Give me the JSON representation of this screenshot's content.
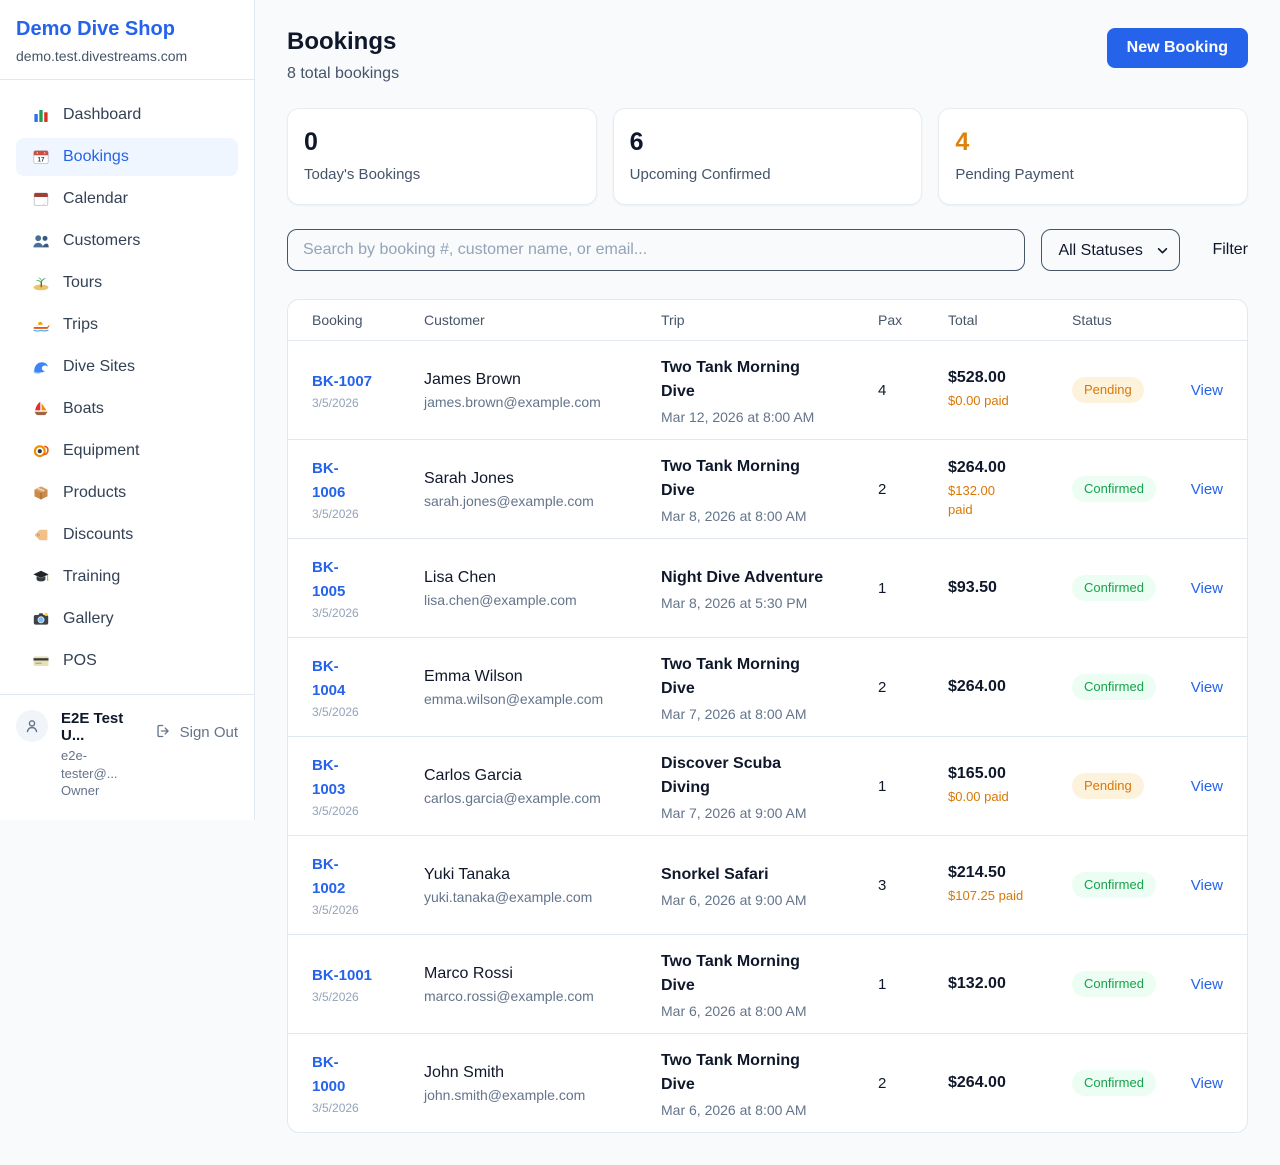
{
  "colors": {
    "primary_blue": "#2563eb",
    "pending_orange": "#d97706",
    "pending_badge_bg": "#fdf3dd",
    "confirmed_green": "#16a34a",
    "confirmed_badge_bg": "#ecfdf3",
    "accent_stat_orange": "#dd830d"
  },
  "sidebar": {
    "brand": "Demo Dive Shop",
    "domain": "demo.test.divestreams.com",
    "items": [
      {
        "label": "Dashboard",
        "icon": "dashboard",
        "active": false
      },
      {
        "label": "Bookings",
        "icon": "bookings",
        "active": true
      },
      {
        "label": "Calendar",
        "icon": "calendar",
        "active": false
      },
      {
        "label": "Customers",
        "icon": "customers",
        "active": false
      },
      {
        "label": "Tours",
        "icon": "tours",
        "active": false
      },
      {
        "label": "Trips",
        "icon": "trips",
        "active": false
      },
      {
        "label": "Dive Sites",
        "icon": "dive-sites",
        "active": false
      },
      {
        "label": "Boats",
        "icon": "boats",
        "active": false
      },
      {
        "label": "Equipment",
        "icon": "equipment",
        "active": false
      },
      {
        "label": "Products",
        "icon": "products",
        "active": false
      },
      {
        "label": "Discounts",
        "icon": "discounts",
        "active": false
      },
      {
        "label": "Training",
        "icon": "training",
        "active": false
      },
      {
        "label": "Gallery",
        "icon": "gallery",
        "active": false
      },
      {
        "label": "POS",
        "icon": "pos",
        "active": false
      }
    ],
    "user": {
      "name": "E2E Test U...",
      "email": "e2e-tester@...",
      "role": "Owner",
      "sign_out": "Sign Out"
    }
  },
  "header": {
    "title": "Bookings",
    "subtitle": "8 total bookings",
    "new_booking": "New Booking"
  },
  "stats": [
    {
      "value": "0",
      "label": "Today's Bookings",
      "accent": false
    },
    {
      "value": "6",
      "label": "Upcoming Confirmed",
      "accent": false
    },
    {
      "value": "4",
      "label": "Pending Payment",
      "accent": true
    }
  ],
  "controls": {
    "search_placeholder": "Search by booking #, customer name, or email...",
    "status_filter": "All Statuses",
    "filter": "Filter"
  },
  "table": {
    "columns": [
      "Booking",
      "Customer",
      "Trip",
      "Pax",
      "Total",
      "Status"
    ],
    "view_label": "View",
    "rows": [
      {
        "id": "BK-1007",
        "id_two_line": false,
        "date": "3/5/2026",
        "customer": "James Brown",
        "email": "james.brown@example.com",
        "trip": "Two Tank Morning Dive",
        "trip_two_line": true,
        "when": "Mar 12, 2026 at 8:00 AM",
        "pax": "4",
        "total": "$528.00",
        "paid": "$0.00 paid",
        "paid_two_line": false,
        "status": "Pending"
      },
      {
        "id": "BK-1006",
        "id_two_line": true,
        "date": "3/5/2026",
        "customer": "Sarah Jones",
        "email": "sarah.jones@example.com",
        "trip": "Two Tank Morning Dive",
        "trip_two_line": true,
        "when": "Mar 8, 2026 at 8:00 AM",
        "pax": "2",
        "total": "$264.00",
        "paid": "$132.00 paid",
        "paid_two_line": true,
        "status": "Confirmed"
      },
      {
        "id": "BK-1005",
        "id_two_line": true,
        "date": "3/5/2026",
        "customer": "Lisa Chen",
        "email": "lisa.chen@example.com",
        "trip": "Night Dive Adventure",
        "trip_two_line": false,
        "when": "Mar 8, 2026 at 5:30 PM",
        "pax": "1",
        "total": "$93.50",
        "paid": null,
        "paid_two_line": false,
        "status": "Confirmed"
      },
      {
        "id": "BK-1004",
        "id_two_line": true,
        "date": "3/5/2026",
        "customer": "Emma Wilson",
        "email": "emma.wilson@example.com",
        "trip": "Two Tank Morning Dive",
        "trip_two_line": true,
        "when": "Mar 7, 2026 at 8:00 AM",
        "pax": "2",
        "total": "$264.00",
        "paid": null,
        "paid_two_line": false,
        "status": "Confirmed"
      },
      {
        "id": "BK-1003",
        "id_two_line": true,
        "date": "3/5/2026",
        "customer": "Carlos Garcia",
        "email": "carlos.garcia@example.com",
        "trip": "Discover Scuba Diving",
        "trip_two_line": true,
        "when": "Mar 7, 2026 at 9:00 AM",
        "pax": "1",
        "total": "$165.00",
        "paid": "$0.00 paid",
        "paid_two_line": false,
        "status": "Pending"
      },
      {
        "id": "BK-1002",
        "id_two_line": true,
        "date": "3/5/2026",
        "customer": "Yuki Tanaka",
        "email": "yuki.tanaka@example.com",
        "trip": "Snorkel Safari",
        "trip_two_line": false,
        "when": "Mar 6, 2026 at 9:00 AM",
        "pax": "3",
        "total": "$214.50",
        "paid": "$107.25 paid",
        "paid_two_line": false,
        "status": "Confirmed"
      },
      {
        "id": "BK-1001",
        "id_two_line": false,
        "date": "3/5/2026",
        "customer": "Marco Rossi",
        "email": "marco.rossi@example.com",
        "trip": "Two Tank Morning Dive",
        "trip_two_line": true,
        "when": "Mar 6, 2026 at 8:00 AM",
        "pax": "1",
        "total": "$132.00",
        "paid": null,
        "paid_two_line": false,
        "status": "Confirmed"
      },
      {
        "id": "BK-1000",
        "id_two_line": true,
        "date": "3/5/2026",
        "customer": "John Smith",
        "email": "john.smith@example.com",
        "trip": "Two Tank Morning Dive",
        "trip_two_line": true,
        "when": "Mar 6, 2026 at 8:00 AM",
        "pax": "2",
        "total": "$264.00",
        "paid": null,
        "paid_two_line": false,
        "status": "Confirmed"
      }
    ]
  }
}
